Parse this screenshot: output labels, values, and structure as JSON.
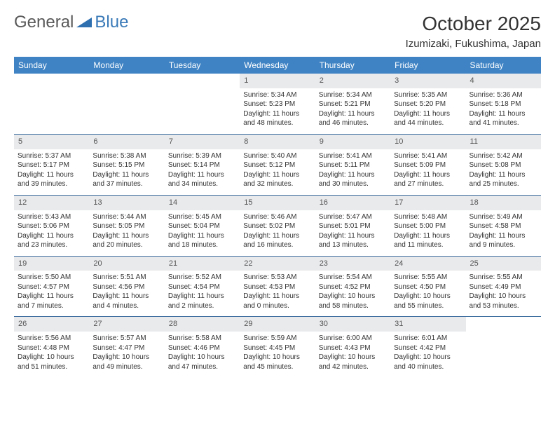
{
  "brand": {
    "part1": "General",
    "part2": "Blue"
  },
  "title": "October 2025",
  "location": "Izumizaki, Fukushima, Japan",
  "colors": {
    "header_bg": "#3f83c4",
    "daynum_bg": "#e9eaec",
    "rule": "#3f6fa0",
    "logo_grey": "#595959",
    "logo_blue": "#3a7ab8"
  },
  "day_headers": [
    "Sunday",
    "Monday",
    "Tuesday",
    "Wednesday",
    "Thursday",
    "Friday",
    "Saturday"
  ],
  "weeks": [
    [
      null,
      null,
      null,
      {
        "n": "1",
        "sr": "5:34 AM",
        "ss": "5:23 PM",
        "dl": "11 hours and 48 minutes."
      },
      {
        "n": "2",
        "sr": "5:34 AM",
        "ss": "5:21 PM",
        "dl": "11 hours and 46 minutes."
      },
      {
        "n": "3",
        "sr": "5:35 AM",
        "ss": "5:20 PM",
        "dl": "11 hours and 44 minutes."
      },
      {
        "n": "4",
        "sr": "5:36 AM",
        "ss": "5:18 PM",
        "dl": "11 hours and 41 minutes."
      }
    ],
    [
      {
        "n": "5",
        "sr": "5:37 AM",
        "ss": "5:17 PM",
        "dl": "11 hours and 39 minutes."
      },
      {
        "n": "6",
        "sr": "5:38 AM",
        "ss": "5:15 PM",
        "dl": "11 hours and 37 minutes."
      },
      {
        "n": "7",
        "sr": "5:39 AM",
        "ss": "5:14 PM",
        "dl": "11 hours and 34 minutes."
      },
      {
        "n": "8",
        "sr": "5:40 AM",
        "ss": "5:12 PM",
        "dl": "11 hours and 32 minutes."
      },
      {
        "n": "9",
        "sr": "5:41 AM",
        "ss": "5:11 PM",
        "dl": "11 hours and 30 minutes."
      },
      {
        "n": "10",
        "sr": "5:41 AM",
        "ss": "5:09 PM",
        "dl": "11 hours and 27 minutes."
      },
      {
        "n": "11",
        "sr": "5:42 AM",
        "ss": "5:08 PM",
        "dl": "11 hours and 25 minutes."
      }
    ],
    [
      {
        "n": "12",
        "sr": "5:43 AM",
        "ss": "5:06 PM",
        "dl": "11 hours and 23 minutes."
      },
      {
        "n": "13",
        "sr": "5:44 AM",
        "ss": "5:05 PM",
        "dl": "11 hours and 20 minutes."
      },
      {
        "n": "14",
        "sr": "5:45 AM",
        "ss": "5:04 PM",
        "dl": "11 hours and 18 minutes."
      },
      {
        "n": "15",
        "sr": "5:46 AM",
        "ss": "5:02 PM",
        "dl": "11 hours and 16 minutes."
      },
      {
        "n": "16",
        "sr": "5:47 AM",
        "ss": "5:01 PM",
        "dl": "11 hours and 13 minutes."
      },
      {
        "n": "17",
        "sr": "5:48 AM",
        "ss": "5:00 PM",
        "dl": "11 hours and 11 minutes."
      },
      {
        "n": "18",
        "sr": "5:49 AM",
        "ss": "4:58 PM",
        "dl": "11 hours and 9 minutes."
      }
    ],
    [
      {
        "n": "19",
        "sr": "5:50 AM",
        "ss": "4:57 PM",
        "dl": "11 hours and 7 minutes."
      },
      {
        "n": "20",
        "sr": "5:51 AM",
        "ss": "4:56 PM",
        "dl": "11 hours and 4 minutes."
      },
      {
        "n": "21",
        "sr": "5:52 AM",
        "ss": "4:54 PM",
        "dl": "11 hours and 2 minutes."
      },
      {
        "n": "22",
        "sr": "5:53 AM",
        "ss": "4:53 PM",
        "dl": "11 hours and 0 minutes."
      },
      {
        "n": "23",
        "sr": "5:54 AM",
        "ss": "4:52 PM",
        "dl": "10 hours and 58 minutes."
      },
      {
        "n": "24",
        "sr": "5:55 AM",
        "ss": "4:50 PM",
        "dl": "10 hours and 55 minutes."
      },
      {
        "n": "25",
        "sr": "5:55 AM",
        "ss": "4:49 PM",
        "dl": "10 hours and 53 minutes."
      }
    ],
    [
      {
        "n": "26",
        "sr": "5:56 AM",
        "ss": "4:48 PM",
        "dl": "10 hours and 51 minutes."
      },
      {
        "n": "27",
        "sr": "5:57 AM",
        "ss": "4:47 PM",
        "dl": "10 hours and 49 minutes."
      },
      {
        "n": "28",
        "sr": "5:58 AM",
        "ss": "4:46 PM",
        "dl": "10 hours and 47 minutes."
      },
      {
        "n": "29",
        "sr": "5:59 AM",
        "ss": "4:45 PM",
        "dl": "10 hours and 45 minutes."
      },
      {
        "n": "30",
        "sr": "6:00 AM",
        "ss": "4:43 PM",
        "dl": "10 hours and 42 minutes."
      },
      {
        "n": "31",
        "sr": "6:01 AM",
        "ss": "4:42 PM",
        "dl": "10 hours and 40 minutes."
      },
      null
    ]
  ],
  "labels": {
    "sunrise": "Sunrise:",
    "sunset": "Sunset:",
    "daylight": "Daylight:"
  }
}
